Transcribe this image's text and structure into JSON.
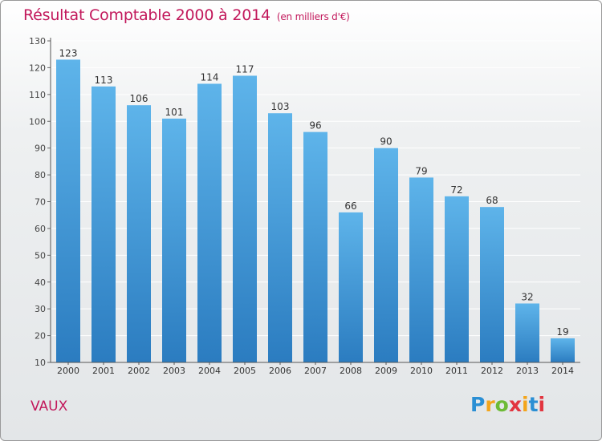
{
  "header": {
    "title": "Résultat Comptable 2000 à 2014",
    "subtitle": "(en milliers d'€)"
  },
  "footer": {
    "place": "VAUX",
    "logo": "Proxiti"
  },
  "colors": {
    "accent": "#c2185b",
    "bar_top": "#5eb4ea",
    "bar_bottom": "#2b7cc0",
    "grid": "#ffffff"
  },
  "chart_data": {
    "type": "bar",
    "title": "Résultat Comptable 2000 à 2014",
    "subtitle": "(en milliers d'€)",
    "xlabel": "",
    "ylabel": "",
    "categories": [
      "2000",
      "2001",
      "2002",
      "2003",
      "2004",
      "2005",
      "2006",
      "2007",
      "2008",
      "2009",
      "2010",
      "2011",
      "2012",
      "2013",
      "2014"
    ],
    "values": [
      123,
      113,
      106,
      101,
      114,
      117,
      103,
      96,
      66,
      90,
      79,
      72,
      68,
      32,
      19
    ],
    "ylim": [
      10,
      130
    ],
    "yticks": [
      10,
      20,
      30,
      40,
      50,
      60,
      70,
      80,
      90,
      100,
      110,
      120,
      130
    ],
    "grid": true,
    "legend": "none"
  }
}
